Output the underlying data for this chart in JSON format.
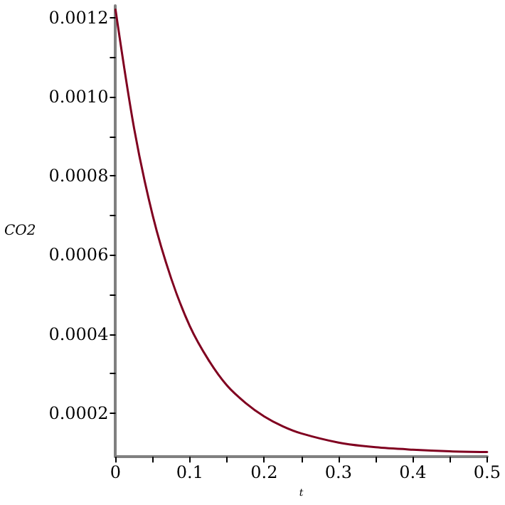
{
  "chart_data": {
    "type": "line",
    "xlabel": "t",
    "ylabel": "CO2",
    "x": [
      0,
      0.025,
      0.05,
      0.075,
      0.1,
      0.125,
      0.15,
      0.175,
      0.2,
      0.225,
      0.25,
      0.3,
      0.35,
      0.4,
      0.45,
      0.5
    ],
    "series": [
      {
        "color": "#800020",
        "values": [
          0.00122,
          0.00092,
          0.0007,
          0.00054,
          0.00042,
          0.000335,
          0.00027,
          0.000226,
          0.000192,
          0.000167,
          0.000149,
          0.000126,
          0.000114,
          0.000108,
          0.000104,
          0.000102
        ]
      }
    ],
    "xlim": [
      0,
      0.5
    ],
    "xticks": [
      0,
      {
        "value": 0.05,
        "label": null
      },
      0.1,
      {
        "value": 0.15,
        "label": null
      },
      0.2,
      {
        "value": 0.25,
        "label": null
      },
      0.3,
      {
        "value": 0.35,
        "label": null
      },
      0.4,
      {
        "value": 0.45,
        "label": null
      },
      0.5
    ],
    "ylim": [
      9e-05,
      0.00123
    ],
    "yticks": [
      {
        "value": 0.0002,
        "label": "0.0002"
      },
      {
        "value": 0.0003,
        "label": null
      },
      {
        "value": 0.0004,
        "label": "0.0004"
      },
      {
        "value": 0.0005,
        "label": null
      },
      {
        "value": 0.0006,
        "label": "0.0006"
      },
      {
        "value": 0.0007,
        "label": null
      },
      {
        "value": 0.0008,
        "label": "0.0008"
      },
      {
        "value": 0.0009,
        "label": null
      },
      {
        "value": 0.001,
        "label": "0.0010"
      },
      {
        "value": 0.0011,
        "label": null
      },
      {
        "value": 0.0012,
        "label": "0.0012"
      }
    ],
    "grid": false,
    "marker": "none",
    "line_style": "solid"
  }
}
